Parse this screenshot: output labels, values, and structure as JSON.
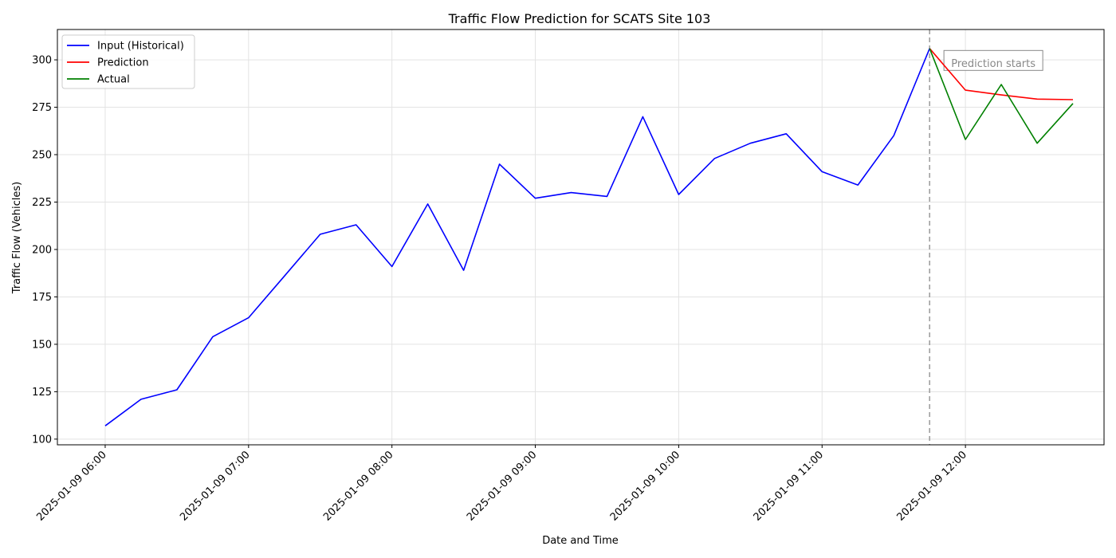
{
  "chart_data": {
    "type": "line",
    "title": "Traffic Flow Prediction for SCATS Site 103",
    "xlabel": "Date and Time",
    "ylabel": "Traffic Flow (Vehicles)",
    "ylim": [
      97,
      316
    ],
    "xlim": [
      "2025-01-09 05:40",
      "2025-01-09 12:58"
    ],
    "yticks": [
      100,
      125,
      150,
      175,
      200,
      225,
      250,
      275,
      300
    ],
    "xticks": [
      "2025-01-09 06:00",
      "2025-01-09 07:00",
      "2025-01-09 08:00",
      "2025-01-09 09:00",
      "2025-01-09 10:00",
      "2025-01-09 11:00",
      "2025-01-09 12:00"
    ],
    "grid": true,
    "legend_position": "top-left",
    "series": [
      {
        "name": "Input (Historical)",
        "color": "#0000ff",
        "x": [
          "2025-01-09 06:00",
          "2025-01-09 06:15",
          "2025-01-09 06:30",
          "2025-01-09 06:45",
          "2025-01-09 07:00",
          "2025-01-09 07:15",
          "2025-01-09 07:30",
          "2025-01-09 07:45",
          "2025-01-09 08:00",
          "2025-01-09 08:15",
          "2025-01-09 08:30",
          "2025-01-09 08:45",
          "2025-01-09 09:00",
          "2025-01-09 09:15",
          "2025-01-09 09:30",
          "2025-01-09 09:45",
          "2025-01-09 10:00",
          "2025-01-09 10:15",
          "2025-01-09 10:30",
          "2025-01-09 10:45",
          "2025-01-09 11:00",
          "2025-01-09 11:15",
          "2025-01-09 11:30",
          "2025-01-09 11:45"
        ],
        "values": [
          107,
          121,
          126,
          154,
          164,
          186,
          208,
          213,
          191,
          224,
          189,
          245,
          227,
          230,
          228,
          270,
          229,
          248,
          256,
          261,
          241,
          234,
          260,
          306
        ]
      },
      {
        "name": "Prediction",
        "color": "#ff0000",
        "x": [
          "2025-01-09 11:45",
          "2025-01-09 12:00",
          "2025-01-09 12:15",
          "2025-01-09 12:30",
          "2025-01-09 12:45"
        ],
        "values": [
          306,
          284,
          281.5,
          279.3,
          279
        ]
      },
      {
        "name": "Actual",
        "color": "#008000",
        "x": [
          "2025-01-09 11:45",
          "2025-01-09 12:00",
          "2025-01-09 12:15",
          "2025-01-09 12:30",
          "2025-01-09 12:45"
        ],
        "values": [
          306,
          258,
          287,
          256,
          277
        ]
      }
    ],
    "annotations": [
      {
        "type": "vline",
        "x": "2025-01-09 11:45",
        "style": "dashed",
        "color": "#999999"
      },
      {
        "type": "text",
        "text": "Prediction starts",
        "x": "2025-01-09 12:00",
        "y": 298
      }
    ]
  }
}
